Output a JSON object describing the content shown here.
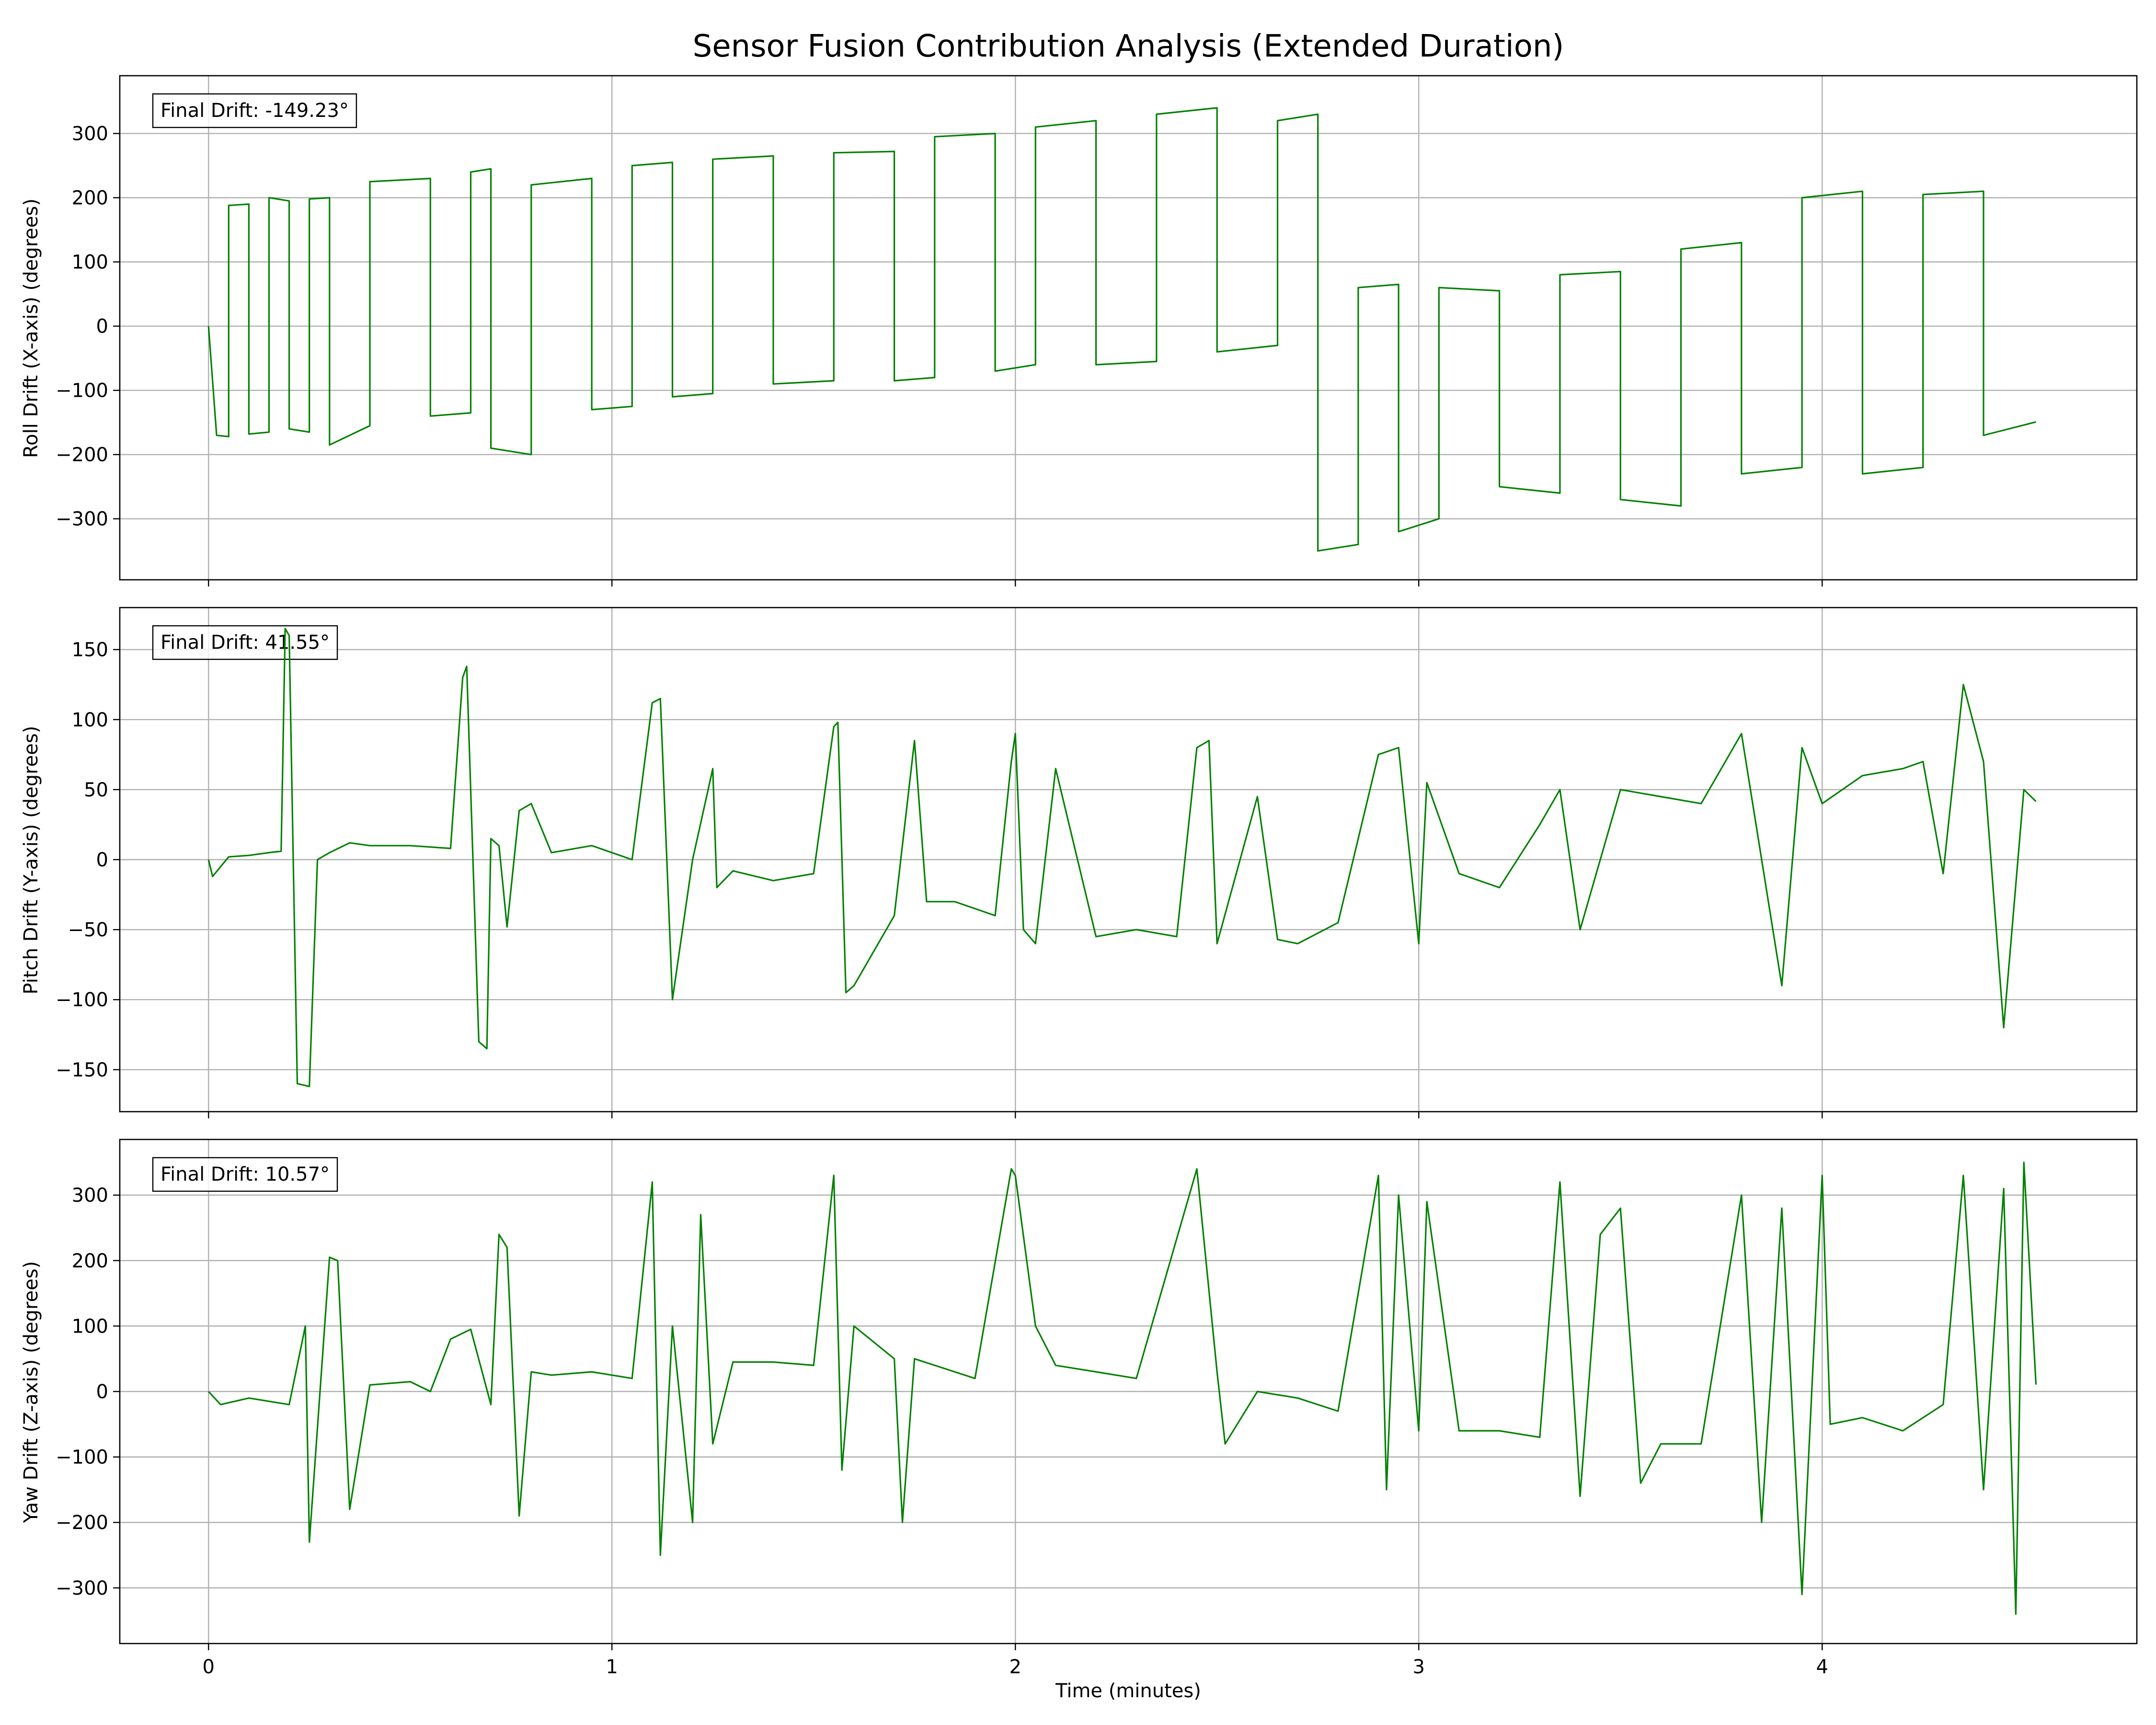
{
  "figure_title": "Sensor Fusion Contribution Analysis (Extended Duration)",
  "line_color": "#008000",
  "grid_color": "#b0b0b0",
  "chart_data": [
    {
      "type": "line",
      "title": "Sensor Fusion Contribution Analysis (Extended Duration)",
      "xlabel": "",
      "ylabel": "Roll Drift (X-axis) (degrees)",
      "xlim": [
        -0.22,
        4.78
      ],
      "ylim": [
        -395,
        390
      ],
      "xticks": [
        0,
        1,
        2,
        3,
        4
      ],
      "yticks": [
        -300,
        -200,
        -100,
        0,
        100,
        200,
        300
      ],
      "grid": true,
      "annotation": "Final Drift: -149.23°",
      "x": [
        0,
        0.02,
        0.05,
        0.05,
        0.1,
        0.1,
        0.15,
        0.15,
        0.2,
        0.2,
        0.25,
        0.25,
        0.3,
        0.3,
        0.4,
        0.4,
        0.55,
        0.55,
        0.65,
        0.65,
        0.7,
        0.7,
        0.8,
        0.8,
        0.95,
        0.95,
        1.05,
        1.05,
        1.15,
        1.15,
        1.25,
        1.25,
        1.4,
        1.4,
        1.55,
        1.55,
        1.7,
        1.7,
        1.8,
        1.8,
        1.95,
        1.95,
        2.05,
        2.05,
        2.2,
        2.2,
        2.35,
        2.35,
        2.5,
        2.5,
        2.65,
        2.65,
        2.75,
        2.75,
        2.85,
        2.85,
        2.95,
        2.95,
        3.05,
        3.05,
        3.2,
        3.2,
        3.35,
        3.35,
        3.5,
        3.5,
        3.65,
        3.65,
        3.8,
        3.8,
        3.95,
        3.95,
        4.1,
        4.1,
        4.25,
        4.25,
        4.4,
        4.4,
        4.53
      ],
      "values": [
        0,
        -170,
        -172,
        188,
        190,
        -168,
        -165,
        200,
        195,
        -160,
        -165,
        198,
        200,
        -185,
        -155,
        225,
        230,
        -140,
        -135,
        240,
        245,
        -190,
        -200,
        220,
        230,
        -130,
        -125,
        250,
        255,
        -110,
        -105,
        260,
        265,
        -90,
        -85,
        270,
        272,
        -85,
        -80,
        295,
        300,
        -70,
        -60,
        310,
        320,
        -60,
        -55,
        330,
        340,
        -40,
        -30,
        320,
        330,
        -350,
        -340,
        60,
        65,
        -320,
        -300,
        60,
        55,
        -250,
        -260,
        80,
        85,
        -270,
        -280,
        120,
        130,
        -230,
        -220,
        200,
        210,
        -230,
        -220,
        205,
        210,
        -170,
        -149.23
      ]
    },
    {
      "type": "line",
      "title": "",
      "xlabel": "",
      "ylabel": "Pitch Drift (Y-axis) (degrees)",
      "xlim": [
        -0.22,
        4.78
      ],
      "ylim": [
        -180,
        180
      ],
      "xticks": [
        0,
        1,
        2,
        3,
        4
      ],
      "yticks": [
        -150,
        -100,
        -50,
        0,
        50,
        100,
        150
      ],
      "grid": true,
      "annotation": "Final Drift: 41.55°",
      "x": [
        0,
        0.01,
        0.05,
        0.1,
        0.15,
        0.18,
        0.19,
        0.2,
        0.22,
        0.25,
        0.27,
        0.3,
        0.35,
        0.4,
        0.5,
        0.6,
        0.63,
        0.64,
        0.67,
        0.69,
        0.7,
        0.72,
        0.74,
        0.77,
        0.8,
        0.85,
        0.95,
        1.05,
        1.1,
        1.12,
        1.15,
        1.2,
        1.25,
        1.26,
        1.3,
        1.4,
        1.5,
        1.55,
        1.56,
        1.58,
        1.6,
        1.7,
        1.75,
        1.78,
        1.85,
        1.9,
        1.95,
        1.99,
        2.0,
        2.02,
        2.05,
        2.1,
        2.2,
        2.3,
        2.4,
        2.45,
        2.48,
        2.5,
        2.6,
        2.65,
        2.7,
        2.8,
        2.9,
        2.95,
        3.0,
        3.02,
        3.1,
        3.2,
        3.3,
        3.35,
        3.4,
        3.5,
        3.6,
        3.7,
        3.8,
        3.9,
        3.95,
        4.0,
        4.1,
        4.2,
        4.25,
        4.3,
        4.35,
        4.4,
        4.45,
        4.5,
        4.53
      ],
      "values": [
        0,
        -12,
        2,
        3,
        5,
        6,
        165,
        160,
        -160,
        -162,
        0,
        5,
        12,
        10,
        10,
        8,
        130,
        138,
        -130,
        -135,
        15,
        10,
        -48,
        35,
        40,
        5,
        10,
        0,
        112,
        115,
        -100,
        0,
        65,
        -20,
        -8,
        -15,
        -10,
        95,
        98,
        -95,
        -90,
        -40,
        85,
        -30,
        -30,
        -35,
        -40,
        70,
        90,
        -50,
        -60,
        65,
        -55,
        -50,
        -55,
        80,
        85,
        -60,
        45,
        -57,
        -60,
        -45,
        75,
        80,
        -60,
        55,
        -10,
        -20,
        25,
        50,
        -50,
        50,
        45,
        40,
        90,
        -90,
        80,
        40,
        60,
        65,
        70,
        -10,
        125,
        70,
        -120,
        50,
        41.55
      ]
    },
    {
      "type": "line",
      "title": "",
      "xlabel": "Time (minutes)",
      "ylabel": "Yaw Drift (Z-axis) (degrees)",
      "xlim": [
        -0.22,
        4.78
      ],
      "ylim": [
        -385,
        385
      ],
      "xticks": [
        0,
        1,
        2,
        3,
        4
      ],
      "yticks": [
        -300,
        -200,
        -100,
        0,
        100,
        200,
        300
      ],
      "grid": true,
      "annotation": "Final Drift: 10.57°",
      "x": [
        0,
        0.03,
        0.1,
        0.2,
        0.24,
        0.25,
        0.3,
        0.32,
        0.35,
        0.4,
        0.5,
        0.55,
        0.6,
        0.65,
        0.7,
        0.72,
        0.74,
        0.77,
        0.8,
        0.85,
        0.95,
        1.05,
        1.1,
        1.12,
        1.15,
        1.2,
        1.22,
        1.25,
        1.3,
        1.4,
        1.5,
        1.55,
        1.57,
        1.6,
        1.7,
        1.72,
        1.75,
        1.8,
        1.9,
        1.99,
        2.0,
        2.05,
        2.1,
        2.2,
        2.3,
        2.45,
        2.5,
        2.52,
        2.6,
        2.7,
        2.8,
        2.9,
        2.92,
        2.95,
        3.0,
        3.02,
        3.1,
        3.2,
        3.3,
        3.35,
        3.4,
        3.45,
        3.5,
        3.55,
        3.6,
        3.7,
        3.8,
        3.85,
        3.9,
        3.95,
        4.0,
        4.02,
        4.1,
        4.2,
        4.3,
        4.35,
        4.4,
        4.45,
        4.48,
        4.5,
        4.53
      ],
      "values": [
        0,
        -20,
        -10,
        -20,
        100,
        -230,
        205,
        200,
        -180,
        10,
        15,
        0,
        80,
        95,
        -20,
        240,
        220,
        -190,
        30,
        25,
        30,
        20,
        320,
        -250,
        100,
        -200,
        270,
        -80,
        45,
        45,
        40,
        330,
        -120,
        100,
        50,
        -200,
        50,
        40,
        20,
        340,
        330,
        100,
        40,
        30,
        20,
        340,
        30,
        -80,
        0,
        -10,
        -30,
        330,
        -150,
        300,
        -60,
        290,
        -60,
        -60,
        -70,
        320,
        -160,
        240,
        280,
        -140,
        -80,
        -80,
        300,
        -200,
        280,
        -310,
        330,
        -50,
        -40,
        -60,
        -20,
        330,
        -150,
        310,
        -340,
        350,
        10.57
      ]
    }
  ]
}
